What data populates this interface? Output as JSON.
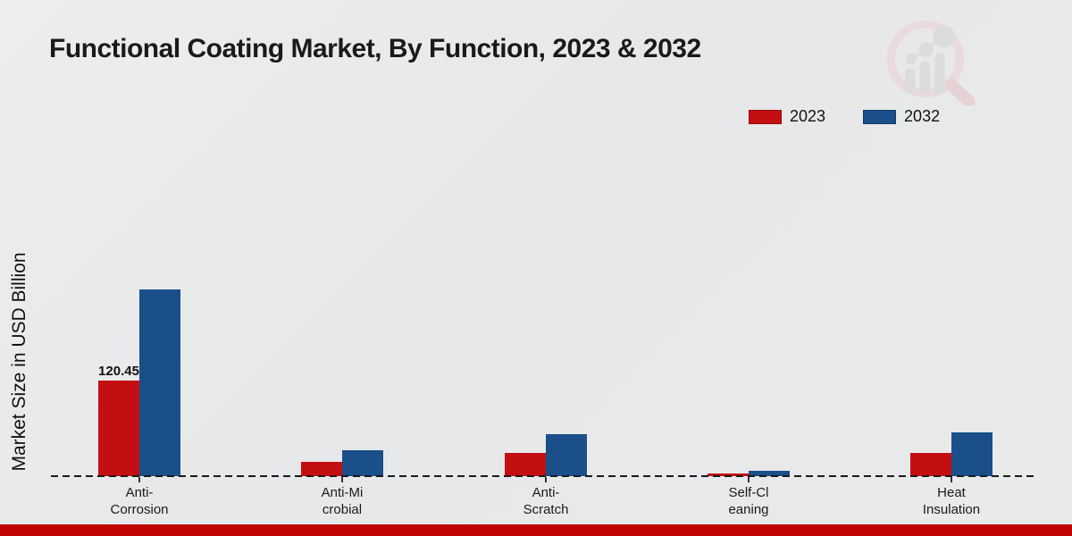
{
  "chart_data": {
    "type": "bar",
    "title": "Functional Coating Market, By Function, 2023 & 2032",
    "ylabel": "Market Size in USD Billion",
    "xlabel": "",
    "categories": [
      "Anti-Corrosion",
      "Anti-Microbial",
      "Anti-Scratch",
      "Self-Cleaning",
      "Heat Insulation"
    ],
    "category_label_lines": [
      [
        "Anti-",
        "Corrosion"
      ],
      [
        "Anti-Mi",
        "crobial"
      ],
      [
        "Anti-",
        "Scratch"
      ],
      [
        "Self-Cl",
        "eaning"
      ],
      [
        "Heat",
        "Insulation"
      ]
    ],
    "series": [
      {
        "name": "2023",
        "color": "#c40f12",
        "values": [
          120.45,
          18.0,
          29.3,
          3.4,
          29.3
        ],
        "bar_labels": [
          "120.45",
          null,
          null,
          null,
          null
        ]
      },
      {
        "name": "2032",
        "color": "#1a4f8a",
        "values": [
          235.2,
          32.6,
          52.9,
          6.2,
          55.2
        ],
        "bar_labels": [
          null,
          null,
          null,
          null,
          null
        ]
      }
    ],
    "legend_position": "top-right",
    "grid": false,
    "baseline_style": "dashed",
    "ylim": [
      0,
      250
    ]
  },
  "watermark": {
    "icon": "magnifier-bar-chart-logo"
  },
  "colors": {
    "series_2023": "#c40f12",
    "series_2032": "#1a4f8a",
    "footer_bar": "#c00505",
    "background": "#e8e9ea"
  }
}
